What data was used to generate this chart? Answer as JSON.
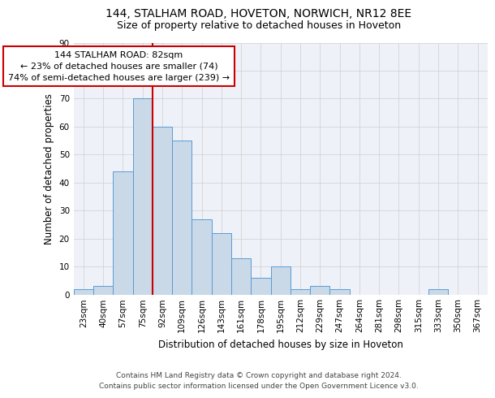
{
  "title_line1": "144, STALHAM ROAD, HOVETON, NORWICH, NR12 8EE",
  "title_line2": "Size of property relative to detached houses in Hoveton",
  "xlabel": "Distribution of detached houses by size in Hoveton",
  "ylabel": "Number of detached properties",
  "categories": [
    "23sqm",
    "40sqm",
    "57sqm",
    "75sqm",
    "92sqm",
    "109sqm",
    "126sqm",
    "143sqm",
    "161sqm",
    "178sqm",
    "195sqm",
    "212sqm",
    "229sqm",
    "247sqm",
    "264sqm",
    "281sqm",
    "298sqm",
    "315sqm",
    "333sqm",
    "350sqm",
    "367sqm"
  ],
  "values": [
    2,
    3,
    44,
    70,
    60,
    55,
    27,
    22,
    13,
    6,
    10,
    2,
    3,
    2,
    0,
    0,
    0,
    0,
    2,
    0,
    0
  ],
  "bar_color": "#c9d9e8",
  "bar_edge_color": "#5b9bd5",
  "grid_color": "#d3d3d3",
  "red_line_x": 3.5,
  "annotation_text_line1": "144 STALHAM ROAD: 82sqm",
  "annotation_text_line2": "← 23% of detached houses are smaller (74)",
  "annotation_text_line3": "74% of semi-detached houses are larger (239) →",
  "ylim": [
    0,
    90
  ],
  "yticks": [
    0,
    10,
    20,
    30,
    40,
    50,
    60,
    70,
    80,
    90
  ],
  "footer_line1": "Contains HM Land Registry data © Crown copyright and database right 2024.",
  "footer_line2": "Contains public sector information licensed under the Open Government Licence v3.0.",
  "background_color": "#eef2f8",
  "title1_fontsize": 10,
  "title2_fontsize": 9,
  "xlabel_fontsize": 8.5,
  "ylabel_fontsize": 8.5,
  "tick_fontsize": 7.5,
  "footer_fontsize": 6.5,
  "ann_fontsize": 8.0
}
